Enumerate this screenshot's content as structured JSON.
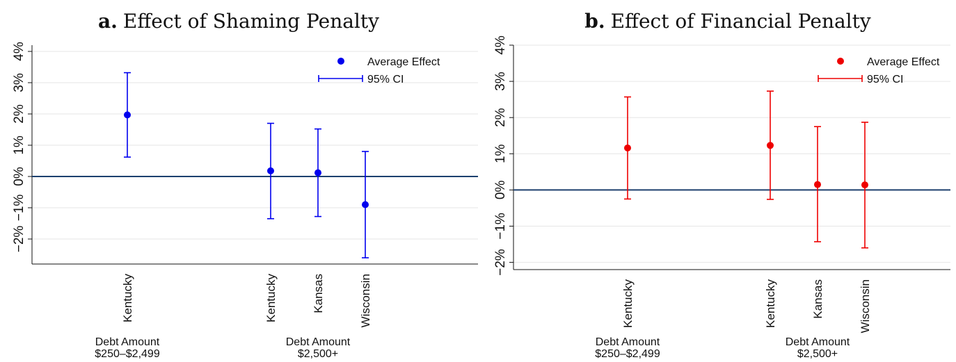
{
  "chart_data": [
    {
      "type": "scatter",
      "panel_letter": "a.",
      "title": "Effect of Shaming Penalty",
      "color": "#0000ee",
      "ylim": [
        -2.8,
        4.2
      ],
      "yticks": [
        -2,
        -1,
        0,
        1,
        2,
        3,
        4
      ],
      "ytick_labels": [
        "−2%",
        "−1%",
        "0%",
        "1%",
        "2%",
        "3%",
        "4%"
      ],
      "grid": true,
      "reference_line": 0,
      "legend": {
        "position": "top-right",
        "point_label": "Average Effect",
        "ci_label": "95% CI"
      },
      "points": [
        {
          "label": "Kentucky",
          "group": 0,
          "value": 1.97,
          "ci": [
            0.62,
            3.32
          ]
        },
        {
          "label": "Kentucky",
          "group": 1,
          "value": 0.18,
          "ci": [
            -1.35,
            1.7
          ]
        },
        {
          "label": "Kansas",
          "group": 1,
          "value": 0.12,
          "ci": [
            -1.28,
            1.52
          ]
        },
        {
          "label": "Wisconsin",
          "group": 1,
          "value": -0.9,
          "ci": [
            -2.6,
            0.8
          ]
        }
      ],
      "groups": [
        {
          "line1": "Debt Amount",
          "line2": "$250–$2,499"
        },
        {
          "line1": "Debt Amount",
          "line2": "$2,500+"
        }
      ]
    },
    {
      "type": "scatter",
      "panel_letter": "b.",
      "title": "Effect of Financial Penalty",
      "color": "#ee0000",
      "ylim": [
        -2.2,
        4.0
      ],
      "yticks": [
        -2,
        -1,
        0,
        1,
        2,
        3,
        4
      ],
      "ytick_labels": [
        "−2%",
        "−1%",
        "0%",
        "1%",
        "2%",
        "3%",
        "4%"
      ],
      "grid": true,
      "reference_line": 0,
      "legend": {
        "position": "top-right",
        "point_label": "Average Effect",
        "ci_label": "95% CI"
      },
      "points": [
        {
          "label": "Kentucky",
          "group": 0,
          "value": 1.16,
          "ci": [
            -0.25,
            2.57
          ]
        },
        {
          "label": "Kentucky",
          "group": 1,
          "value": 1.23,
          "ci": [
            -0.26,
            2.73
          ]
        },
        {
          "label": "Kansas",
          "group": 1,
          "value": 0.15,
          "ci": [
            -1.43,
            1.75
          ]
        },
        {
          "label": "Wisconsin",
          "group": 1,
          "value": 0.14,
          "ci": [
            -1.6,
            1.87
          ]
        }
      ],
      "groups": [
        {
          "line1": "Debt Amount",
          "line2": "$250–$2,499"
        },
        {
          "line1": "Debt Amount",
          "line2": "$2,500+"
        }
      ]
    }
  ]
}
